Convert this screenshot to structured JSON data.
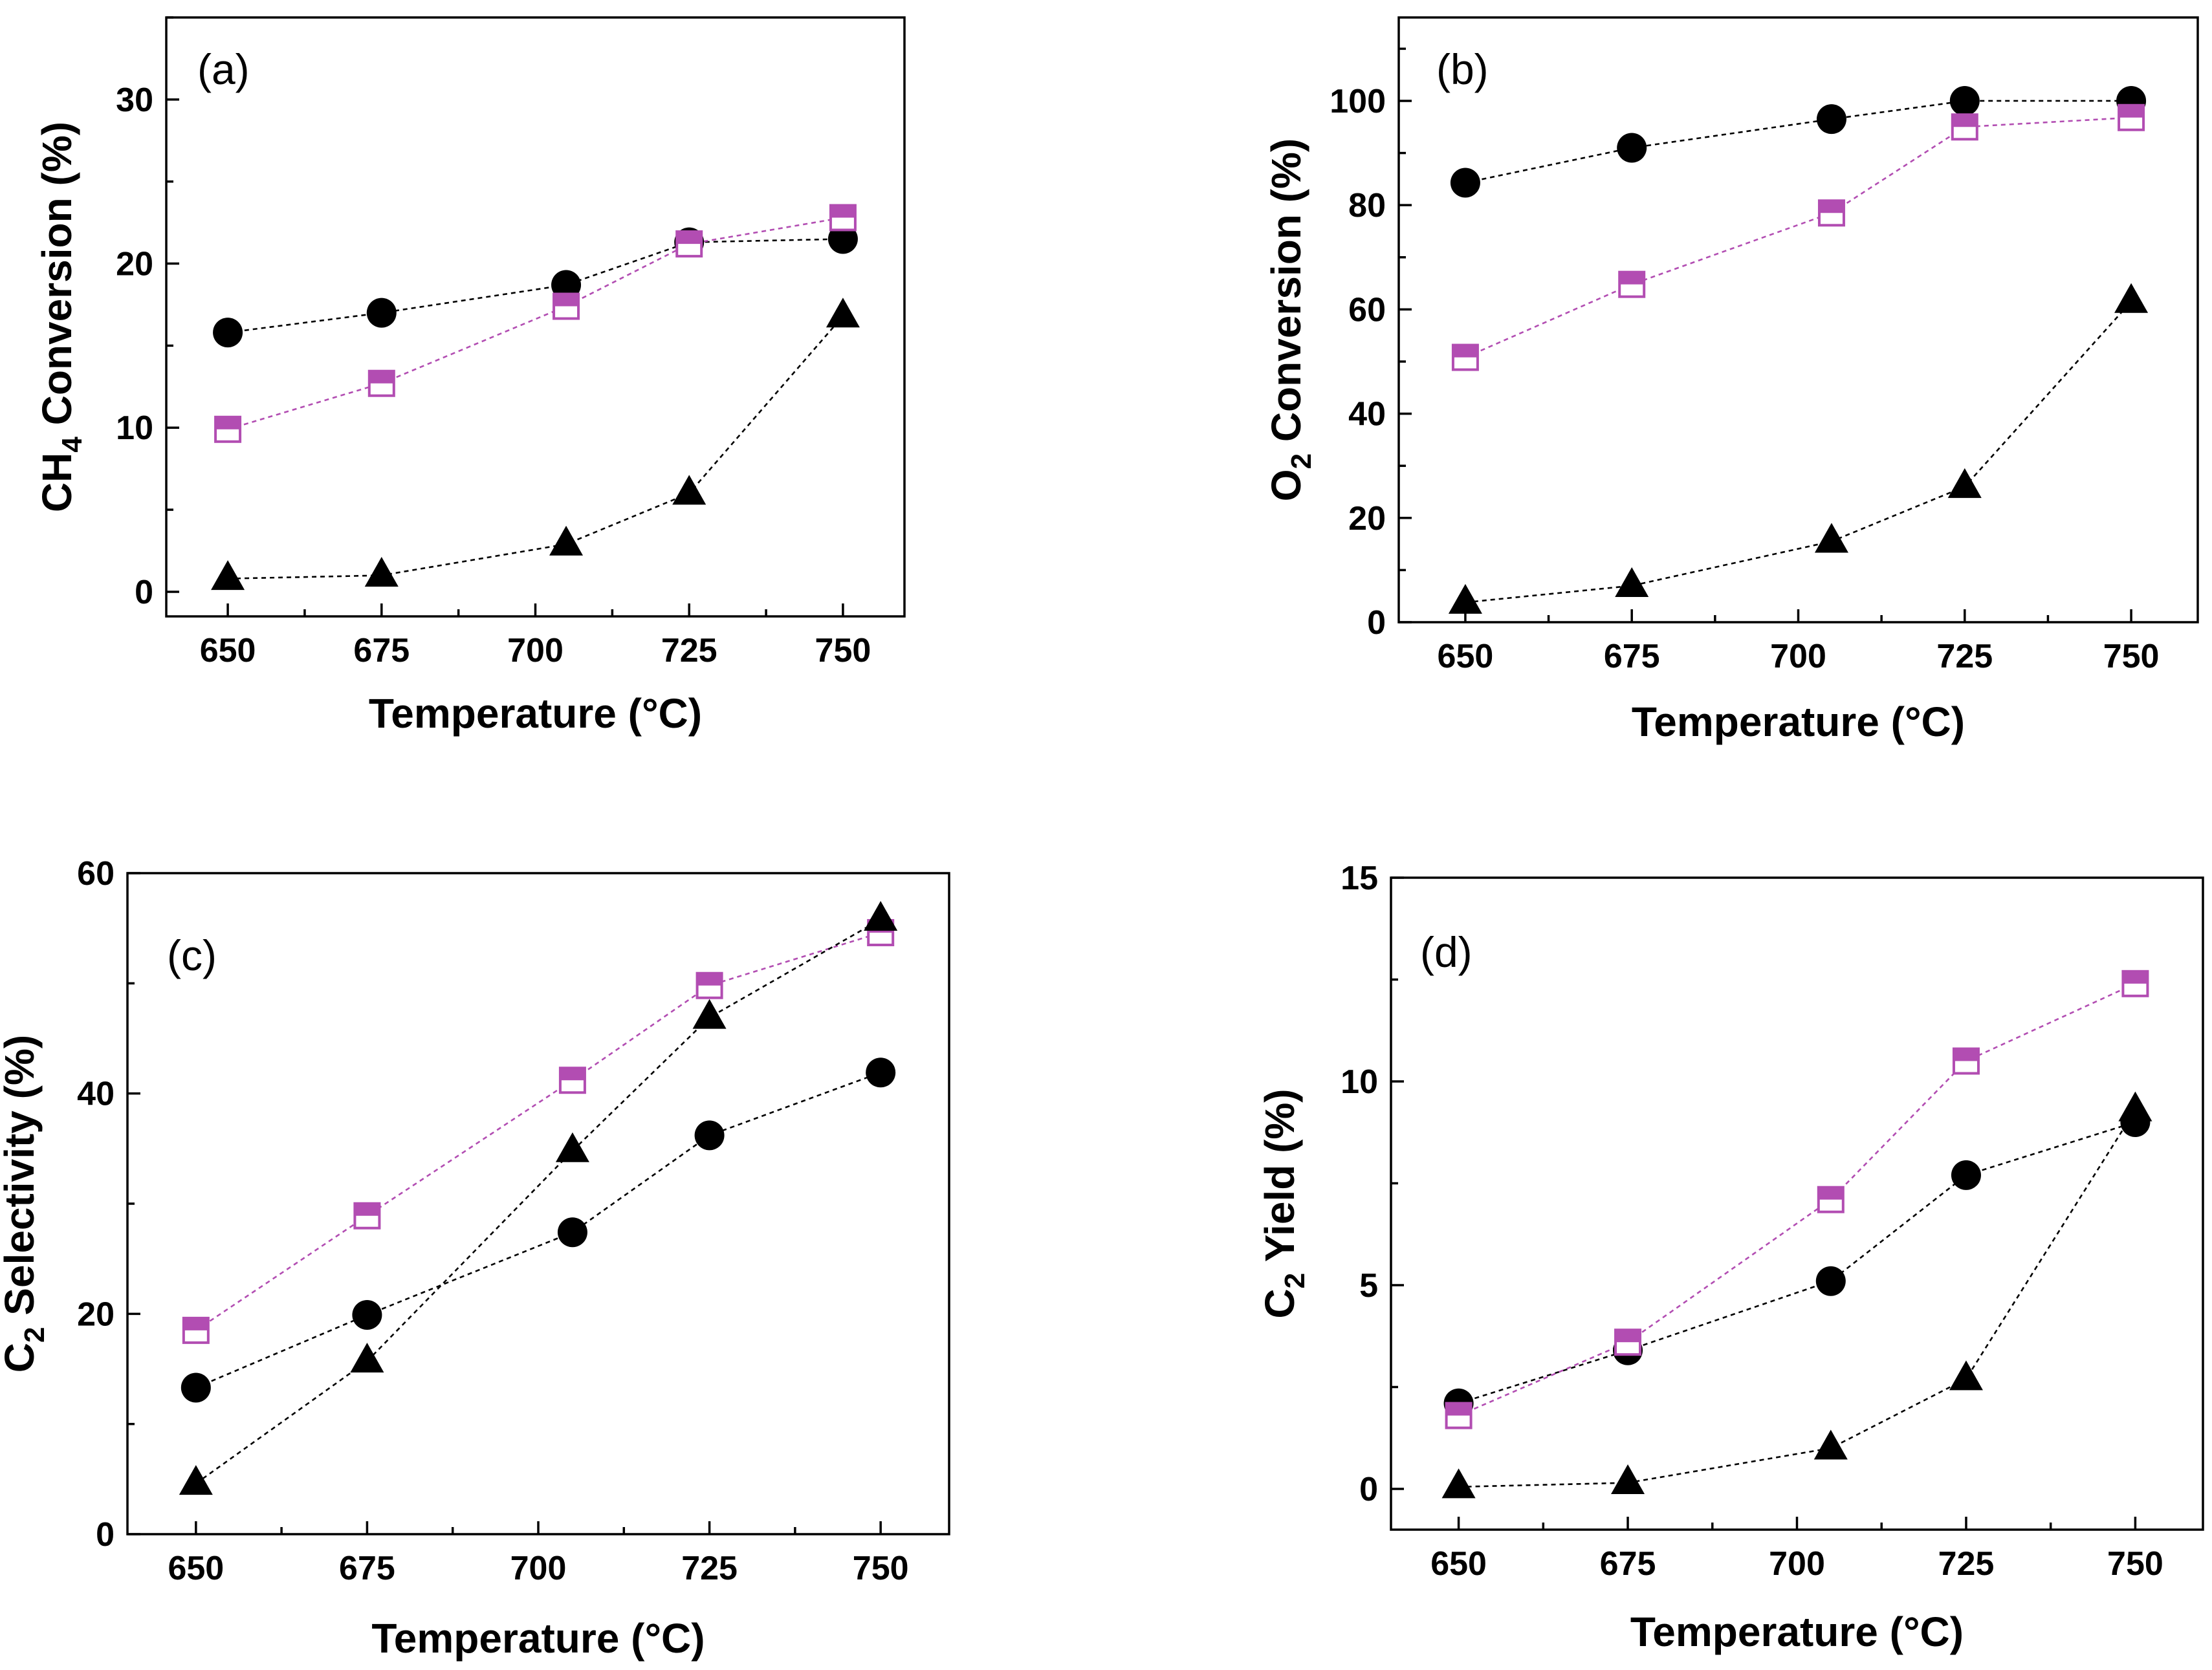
{
  "colors": {
    "circle_series": "#000000",
    "triangle_series": "#000000",
    "square_series": "#b24db2"
  },
  "chart_data": [
    {
      "type": "line",
      "panel": "(a)",
      "xlabel": "Temperature (°C)",
      "ylabel": {
        "prefix": "CH",
        "sub": "4",
        "suffix": " Conversion (%)"
      },
      "x": [
        650,
        675,
        705,
        725,
        750
      ],
      "xticks": [
        650,
        675,
        700,
        725,
        750
      ],
      "xlim": [
        640,
        760
      ],
      "ylim": [
        -1.5,
        35
      ],
      "yticks": [
        0,
        10,
        20,
        30
      ],
      "series": [
        {
          "name": "circle",
          "marker": "circle",
          "values": [
            15.8,
            17.0,
            18.7,
            21.3,
            21.5
          ]
        },
        {
          "name": "half-filled square",
          "marker": "half-square",
          "values": [
            9.9,
            12.7,
            17.4,
            21.2,
            22.8
          ]
        },
        {
          "name": "triangle",
          "marker": "triangle",
          "values": [
            0.8,
            1.0,
            2.9,
            6.0,
            16.8
          ]
        }
      ]
    },
    {
      "type": "line",
      "panel": "(b)",
      "xlabel": "Temperature (°C)",
      "ylabel": {
        "prefix": "O",
        "sub": "2",
        "suffix": " Conversion (%)"
      },
      "x": [
        650,
        675,
        705,
        725,
        750
      ],
      "xticks": [
        650,
        675,
        700,
        725,
        750
      ],
      "xlim": [
        640,
        760
      ],
      "ylim": [
        0,
        116
      ],
      "yticks": [
        0,
        20,
        40,
        60,
        80,
        100
      ],
      "series": [
        {
          "name": "circle",
          "marker": "circle",
          "values": [
            84.3,
            91.0,
            96.5,
            100.0,
            100.0
          ]
        },
        {
          "name": "half-filled square",
          "marker": "half-square",
          "values": [
            50.8,
            64.8,
            78.5,
            95.0,
            96.8
          ]
        },
        {
          "name": "triangle",
          "marker": "triangle",
          "values": [
            3.8,
            7.0,
            15.5,
            26.0,
            61.5
          ]
        }
      ]
    },
    {
      "type": "line",
      "panel": "(c)",
      "xlabel": "Temperature (°C)",
      "ylabel": {
        "prefix": "C",
        "sub": "2",
        "suffix": " Selectivity (%)"
      },
      "x": [
        650,
        675,
        705,
        725,
        750
      ],
      "xticks": [
        650,
        675,
        700,
        725,
        750
      ],
      "xlim": [
        640,
        760
      ],
      "ylim": [
        0,
        60
      ],
      "yticks": [
        0,
        20,
        40,
        60
      ],
      "series": [
        {
          "name": "circle",
          "marker": "circle",
          "values": [
            13.3,
            19.9,
            27.4,
            36.2,
            41.9
          ]
        },
        {
          "name": "half-filled square",
          "marker": "half-square",
          "values": [
            18.5,
            28.9,
            41.2,
            49.8,
            54.6
          ]
        },
        {
          "name": "triangle",
          "marker": "triangle",
          "values": [
            4.6,
            15.7,
            34.8,
            46.9,
            55.8
          ]
        }
      ]
    },
    {
      "type": "line",
      "panel": "(d)",
      "xlabel": "Temperature (°C)",
      "ylabel": {
        "prefix": "C",
        "sub": "2",
        "suffix": " Yield (%)"
      },
      "x": [
        650,
        675,
        705,
        725,
        750
      ],
      "xticks": [
        650,
        675,
        700,
        725,
        750
      ],
      "xlim": [
        640,
        760
      ],
      "ylim": [
        -1,
        15
      ],
      "yticks": [
        0,
        5,
        10,
        15
      ],
      "series": [
        {
          "name": "circle",
          "marker": "circle",
          "values": [
            2.1,
            3.4,
            5.1,
            7.7,
            9.0
          ]
        },
        {
          "name": "half-filled square",
          "marker": "half-square",
          "values": [
            1.8,
            3.6,
            7.1,
            10.5,
            12.4
          ]
        },
        {
          "name": "triangle",
          "marker": "triangle",
          "values": [
            0.05,
            0.15,
            1.0,
            2.7,
            9.3
          ]
        }
      ]
    }
  ]
}
